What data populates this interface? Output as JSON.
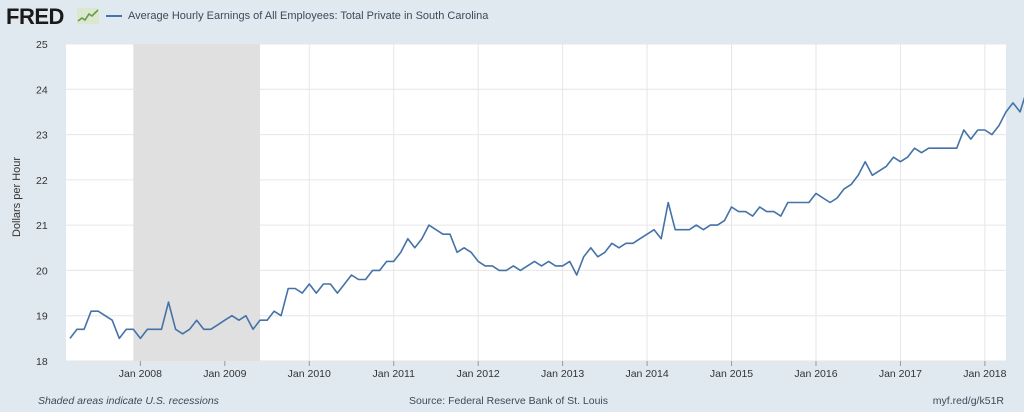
{
  "header": {
    "logo_text": "FRED",
    "logo_icon": "sparkline-icon"
  },
  "footer": {
    "note": "Shaded areas indicate U.S. recessions",
    "source": "Source: Federal Reserve Bank of St. Louis",
    "link": "myf.red/g/k51R"
  },
  "colors": {
    "line": "#4572a7",
    "recession": "#e0e0e0",
    "plot_bg": "#ffffff",
    "grid": "#e6e6e6",
    "background": "#e1e9f0"
  },
  "chart_data": {
    "type": "line",
    "title": "",
    "xlabel": "",
    "ylabel": "Dollars per Hour",
    "ylim": [
      18,
      25
    ],
    "yticks": [
      18,
      19,
      20,
      21,
      22,
      23,
      24,
      25
    ],
    "grid": true,
    "legend_position": "top-left",
    "x_start": "2007-03",
    "x_end": "2018-04",
    "xtick_labels": [
      "Jan 2008",
      "Jan 2009",
      "Jan 2010",
      "Jan 2011",
      "Jan 2012",
      "Jan 2013",
      "Jan 2014",
      "Jan 2015",
      "Jan 2016",
      "Jan 2017",
      "Jan 2018"
    ],
    "recessions": [
      {
        "start": "2007-12",
        "end": "2009-06"
      }
    ],
    "series": [
      {
        "name": "Average Hourly Earnings of All Employees: Total Private in South Carolina",
        "values": [
          18.5,
          18.7,
          18.7,
          19.1,
          19.1,
          19.0,
          18.9,
          18.5,
          18.7,
          18.7,
          18.5,
          18.7,
          18.7,
          18.7,
          19.3,
          18.7,
          18.6,
          18.7,
          18.9,
          18.7,
          18.7,
          18.8,
          18.9,
          19.0,
          18.9,
          19.0,
          18.7,
          18.9,
          18.9,
          19.1,
          19.0,
          19.6,
          19.6,
          19.5,
          19.7,
          19.5,
          19.7,
          19.7,
          19.5,
          19.7,
          19.9,
          19.8,
          19.8,
          20.0,
          20.0,
          20.2,
          20.2,
          20.4,
          20.7,
          20.5,
          20.7,
          21.0,
          20.9,
          20.8,
          20.8,
          20.4,
          20.5,
          20.4,
          20.2,
          20.1,
          20.1,
          20.0,
          20.0,
          20.1,
          20.0,
          20.1,
          20.2,
          20.1,
          20.2,
          20.1,
          20.1,
          20.2,
          19.9,
          20.3,
          20.5,
          20.3,
          20.4,
          20.6,
          20.5,
          20.6,
          20.6,
          20.7,
          20.8,
          20.9,
          20.7,
          21.5,
          20.9,
          20.9,
          20.9,
          21.0,
          20.9,
          21.0,
          21.0,
          21.1,
          21.4,
          21.3,
          21.3,
          21.2,
          21.4,
          21.3,
          21.3,
          21.2,
          21.5,
          21.5,
          21.5,
          21.5,
          21.7,
          21.6,
          21.5,
          21.6,
          21.8,
          21.9,
          22.1,
          22.4,
          22.1,
          22.2,
          22.3,
          22.5,
          22.4,
          22.5,
          22.7,
          22.6,
          22.7,
          22.7,
          22.7,
          22.7,
          22.7,
          23.1,
          22.9,
          23.1,
          23.1,
          23.0,
          23.2,
          23.5,
          23.7,
          23.5,
          24.0
        ]
      }
    ]
  }
}
